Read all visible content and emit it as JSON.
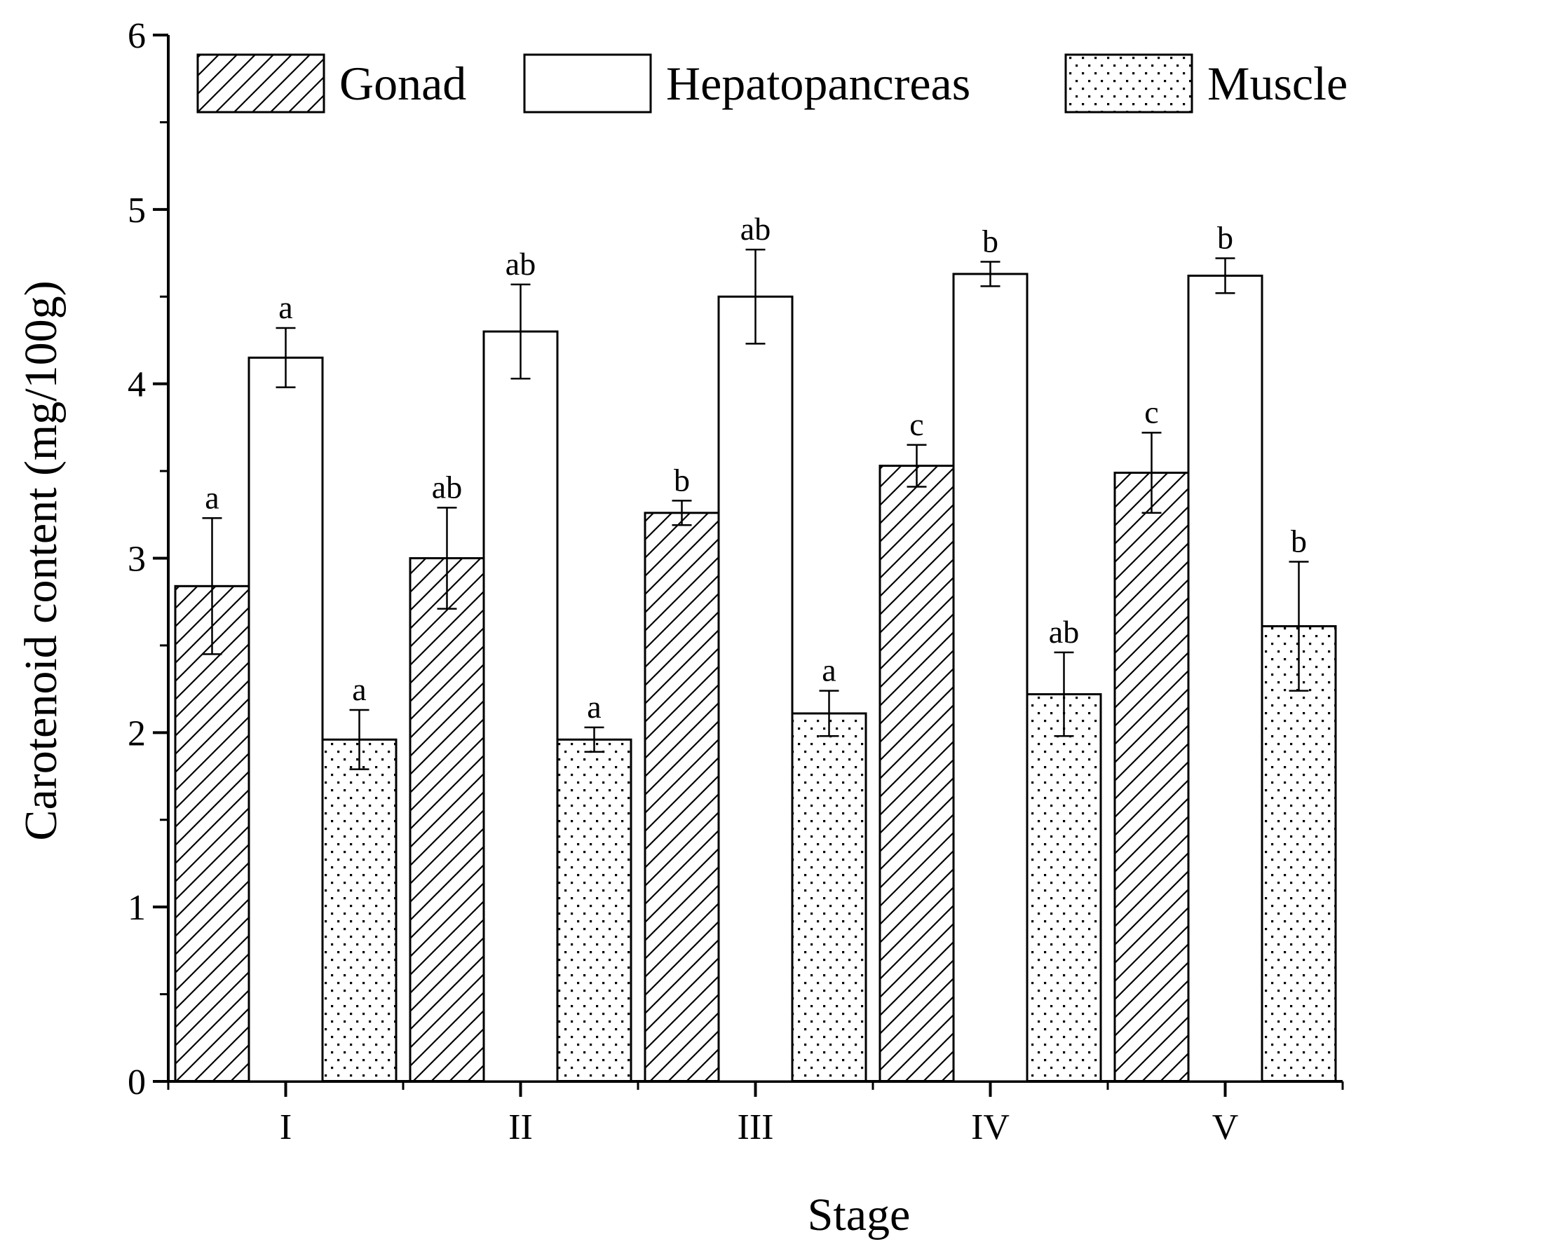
{
  "chart_data": {
    "type": "bar",
    "title": "",
    "xlabel": "Stage",
    "ylabel": "Carotenoid content (mg/100g)",
    "ylim": [
      0,
      6
    ],
    "yticks": [
      "0",
      "1",
      "2",
      "3",
      "4",
      "5",
      "6"
    ],
    "categories": [
      "I",
      "II",
      "III",
      "IV",
      "V"
    ],
    "legend_position": "top",
    "series": [
      {
        "name": "Gonad",
        "pattern": "hatch",
        "values": [
          2.84,
          3.0,
          3.26,
          3.53,
          3.49
        ],
        "errors": [
          0.39,
          0.29,
          0.07,
          0.12,
          0.23
        ],
        "letters": [
          "a",
          "ab",
          "b",
          "c",
          "c"
        ]
      },
      {
        "name": "Hepatopancreas",
        "pattern": "blank",
        "values": [
          4.15,
          4.3,
          4.5,
          4.63,
          4.62
        ],
        "errors": [
          0.17,
          0.27,
          0.27,
          0.07,
          0.1
        ],
        "letters": [
          "a",
          "ab",
          "ab",
          "b",
          "b"
        ]
      },
      {
        "name": "Muscle",
        "pattern": "dots",
        "values": [
          1.96,
          1.96,
          2.11,
          2.22,
          2.61
        ],
        "errors": [
          0.17,
          0.07,
          0.13,
          0.24,
          0.37
        ],
        "letters": [
          "a",
          "a",
          "a",
          "ab",
          "b"
        ]
      }
    ]
  },
  "colors": {
    "stroke": "#000000",
    "fill": "#ffffff"
  }
}
